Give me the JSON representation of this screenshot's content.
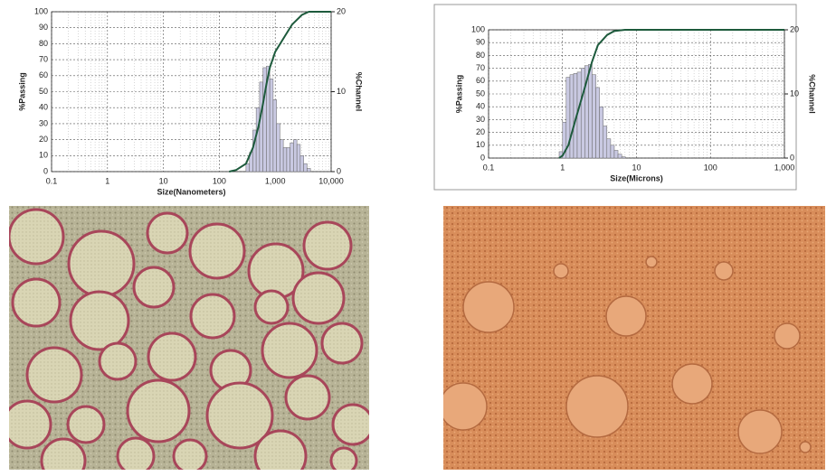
{
  "chart_data": [
    {
      "type": "histogram",
      "log_x": true,
      "grid": true,
      "xlabel": "Size(Nanometers)",
      "ylabel": "%Passing",
      "y2label": "%Channel",
      "xlim": [
        0.1,
        10000
      ],
      "xticks": [
        0.1,
        1,
        10,
        100,
        {
          "value": 1000,
          "label": "1,000"
        },
        {
          "value": 10000,
          "label": "10,000"
        }
      ],
      "ylim": [
        0,
        100
      ],
      "yticks": [
        0,
        10,
        20,
        30,
        40,
        50,
        60,
        70,
        80,
        90,
        100
      ],
      "y2lim": [
        0,
        20
      ],
      "y2ticks": [
        0,
        10,
        20
      ],
      "bins": [
        300,
        345,
        397,
        456,
        525,
        603,
        694,
        798,
        918,
        1055,
        1213,
        1395,
        1605,
        1845,
        2122,
        2441,
        2807,
        3228,
        3712,
        4269
      ],
      "counts": [
        1,
        2.4,
        5.2,
        8,
        11.2,
        13,
        13.2,
        11.6,
        9,
        6,
        4,
        3,
        3,
        3.6,
        4,
        3.4,
        2,
        1,
        0.4
      ],
      "axis": "y2",
      "color": "#c9c9e2",
      "line": {
        "x": [
          150,
          200,
          300,
          400,
          500,
          600,
          700,
          800,
          1000,
          1500,
          2000,
          3000,
          4000,
          10000
        ],
        "values": [
          0,
          1,
          5,
          15,
          28,
          42,
          55,
          65,
          75,
          85,
          92,
          98,
          100,
          100
        ],
        "color": "#1d5a3c"
      }
    },
    {
      "type": "histogram",
      "log_x": true,
      "grid": true,
      "xlabel": "Size(Microns)",
      "ylabel": "%Passing",
      "y2label": "%Channel",
      "xlim": [
        0.1,
        1000
      ],
      "xticks": [
        0.1,
        1,
        10,
        100,
        {
          "value": 1000,
          "label": "1,000"
        }
      ],
      "ylim": [
        0,
        100
      ],
      "yticks": [
        0,
        10,
        20,
        30,
        40,
        50,
        60,
        70,
        80,
        90,
        100
      ],
      "y2lim": [
        0,
        20
      ],
      "y2ticks": [
        0,
        10,
        20
      ],
      "bins": [
        0.9,
        1.0,
        1.12,
        1.26,
        1.41,
        1.58,
        1.78,
        2.0,
        2.24,
        2.51,
        2.82,
        3.16,
        3.55,
        3.98,
        4.47,
        5.01,
        5.62,
        6.31,
        7.08
      ],
      "counts": [
        1,
        5.6,
        12.6,
        13,
        13.2,
        13.4,
        14,
        14.4,
        14.6,
        13,
        11,
        8,
        5,
        3,
        2,
        1.2,
        0.6,
        0.2
      ],
      "axis": "y2",
      "color": "#c9c9e2",
      "line": {
        "x": [
          0.9,
          1,
          1.2,
          1.5,
          2,
          2.5,
          3,
          4,
          5,
          7,
          1000
        ],
        "values": [
          0,
          2,
          10,
          30,
          55,
          75,
          88,
          96,
          99,
          100,
          100
        ],
        "color": "#1d5a3c"
      }
    }
  ]
}
